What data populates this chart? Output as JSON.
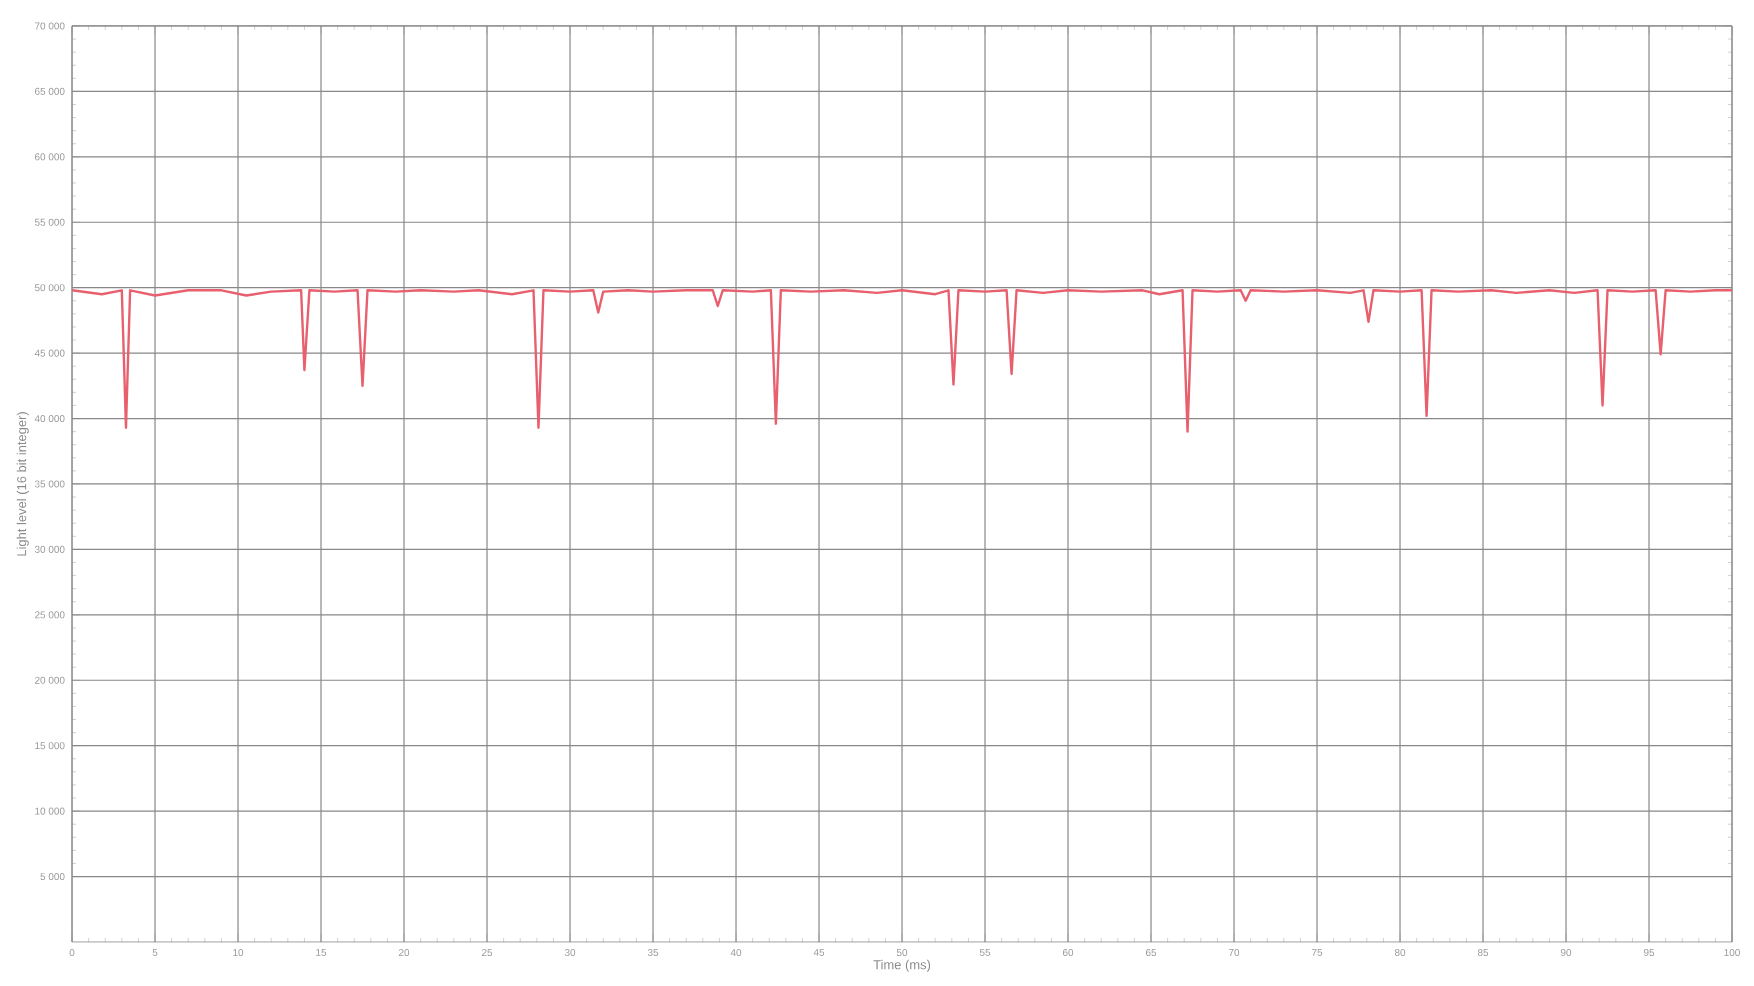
{
  "chart_data": {
    "type": "line",
    "xlabel": "Time (ms)",
    "ylabel": "Light level (16 bit integer)",
    "color": "#e8606e",
    "grid": true,
    "xlim": [
      0,
      100
    ],
    "ylim": [
      0,
      70000
    ],
    "xticks": [
      0,
      5,
      10,
      15,
      20,
      25,
      30,
      35,
      40,
      45,
      50,
      55,
      60,
      65,
      70,
      75,
      80,
      85,
      90,
      95,
      100
    ],
    "yticks": [
      {
        "value": 5000,
        "label": "5 000"
      },
      {
        "value": 10000,
        "label": "10 000"
      },
      {
        "value": 15000,
        "label": "15 000"
      },
      {
        "value": 20000,
        "label": "20 000"
      },
      {
        "value": 25000,
        "label": "25 000"
      },
      {
        "value": 30000,
        "label": "30 000"
      },
      {
        "value": 35000,
        "label": "35 000"
      },
      {
        "value": 40000,
        "label": "40 000"
      },
      {
        "value": 45000,
        "label": "45 000"
      },
      {
        "value": 50000,
        "label": "50 000"
      },
      {
        "value": 55000,
        "label": "55 000"
      },
      {
        "value": 60000,
        "label": "60 000"
      },
      {
        "value": 65000,
        "label": "65 000"
      },
      {
        "value": 70000,
        "label": "70 000"
      }
    ],
    "x": [
      0,
      1.8,
      3.0,
      3.25,
      3.5,
      5.0,
      7.0,
      9.0,
      10.5,
      12.0,
      13.8,
      14.0,
      14.3,
      15.8,
      17.2,
      17.5,
      17.8,
      19.5,
      21.0,
      23.0,
      24.5,
      26.5,
      27.8,
      28.1,
      28.4,
      30.0,
      31.4,
      31.7,
      32.0,
      33.5,
      35.0,
      37.0,
      38.6,
      38.9,
      39.2,
      41.0,
      42.1,
      42.4,
      42.7,
      44.5,
      46.5,
      48.5,
      50.0,
      52.0,
      52.8,
      53.1,
      53.4,
      55.0,
      56.3,
      56.6,
      56.9,
      58.5,
      60.0,
      62.0,
      64.5,
      65.5,
      66.9,
      67.2,
      67.5,
      69.0,
      70.4,
      70.7,
      71.0,
      73.0,
      75.0,
      77.0,
      77.8,
      78.1,
      78.4,
      80.0,
      81.3,
      81.6,
      81.9,
      83.5,
      85.5,
      87.0,
      89.0,
      90.5,
      91.9,
      92.2,
      92.5,
      94.0,
      95.4,
      95.7,
      96.0,
      97.5,
      99.0,
      100
    ],
    "values": [
      49800,
      49500,
      49800,
      39300,
      49800,
      49400,
      49800,
      49800,
      49400,
      49700,
      49800,
      43700,
      49800,
      49700,
      49800,
      42500,
      49800,
      49700,
      49800,
      49700,
      49800,
      49500,
      49800,
      39300,
      49800,
      49700,
      49800,
      48100,
      49700,
      49800,
      49700,
      49800,
      49800,
      48600,
      49800,
      49700,
      49800,
      39600,
      49800,
      49700,
      49800,
      49600,
      49800,
      49500,
      49800,
      42600,
      49800,
      49700,
      49800,
      43400,
      49800,
      49600,
      49800,
      49700,
      49800,
      49500,
      49800,
      39000,
      49800,
      49700,
      49800,
      49000,
      49800,
      49700,
      49800,
      49600,
      49800,
      47400,
      49800,
      49700,
      49800,
      40200,
      49800,
      49700,
      49800,
      49600,
      49800,
      49600,
      49800,
      41000,
      49800,
      49700,
      49800,
      44900,
      49800,
      49700,
      49800,
      49800
    ]
  }
}
